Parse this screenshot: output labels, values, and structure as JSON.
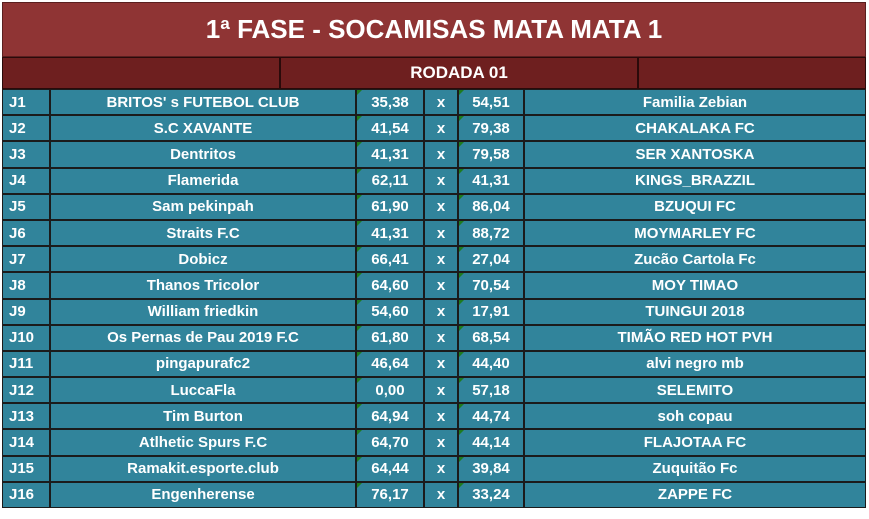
{
  "title": "1ª FASE - SOCAMISAS MATA MATA 1",
  "round": "RODADA 01",
  "versus": "x",
  "matches": [
    {
      "code": "J1",
      "home": "BRITOS' s FUTEBOL CLUB",
      "home_score": "35,38",
      "away_score": "54,51",
      "away": "Familia Zebian"
    },
    {
      "code": "J2",
      "home": "S.C XAVANTE",
      "home_score": "41,54",
      "away_score": "79,38",
      "away": "CHAKALAKA FC"
    },
    {
      "code": "J3",
      "home": "Dentritos",
      "home_score": "41,31",
      "away_score": "79,58",
      "away": "SER XANTOSKA"
    },
    {
      "code": "J4",
      "home": "Flamerida",
      "home_score": "62,11",
      "away_score": "41,31",
      "away": "KINGS_BRAZZIL"
    },
    {
      "code": "J5",
      "home": "Sam pekinpah",
      "home_score": "61,90",
      "away_score": "86,04",
      "away": "BZUQUI FC"
    },
    {
      "code": "J6",
      "home": "Straits F.C",
      "home_score": "41,31",
      "away_score": "88,72",
      "away": "MOYMARLEY FC"
    },
    {
      "code": "J7",
      "home": "Dobicz",
      "home_score": "66,41",
      "away_score": "27,04",
      "away": "Zucão Cartola Fc"
    },
    {
      "code": "J8",
      "home": "Thanos Tricolor",
      "home_score": "64,60",
      "away_score": "70,54",
      "away": "MOY TIMAO"
    },
    {
      "code": "J9",
      "home": "William friedkin",
      "home_score": "54,60",
      "away_score": "17,91",
      "away": "TUINGUI 2018"
    },
    {
      "code": "J10",
      "home": "Os Pernas de Pau 2019 F.C",
      "home_score": "61,80",
      "away_score": "68,54",
      "away": "TIMÃO RED HOT PVH"
    },
    {
      "code": "J11",
      "home": "pingapurafc2",
      "home_score": "46,64",
      "away_score": "44,40",
      "away": "alvi negro mb"
    },
    {
      "code": "J12",
      "home": "LuccaFla",
      "home_score": "0,00",
      "away_score": "57,18",
      "away": "SELEMITO"
    },
    {
      "code": "J13",
      "home": "Tim Burton",
      "home_score": "64,94",
      "away_score": "44,74",
      "away": "soh copau"
    },
    {
      "code": "J14",
      "home": "Atlhetic Spurs F.C",
      "home_score": "64,70",
      "away_score": "44,14",
      "away": "FLAJOTAA FC"
    },
    {
      "code": "J15",
      "home": "Ramakit.esporte.club",
      "home_score": "64,44",
      "away_score": "39,84",
      "away": "Zuquitão Fc"
    },
    {
      "code": "J16",
      "home": "Engenherense",
      "home_score": "76,17",
      "away_score": "33,24",
      "away": "ZAPPE FC"
    }
  ],
  "colors": {
    "title_bg": "#8f3434",
    "header_bg": "#6e1f1f",
    "row_bg": "#31849b"
  }
}
